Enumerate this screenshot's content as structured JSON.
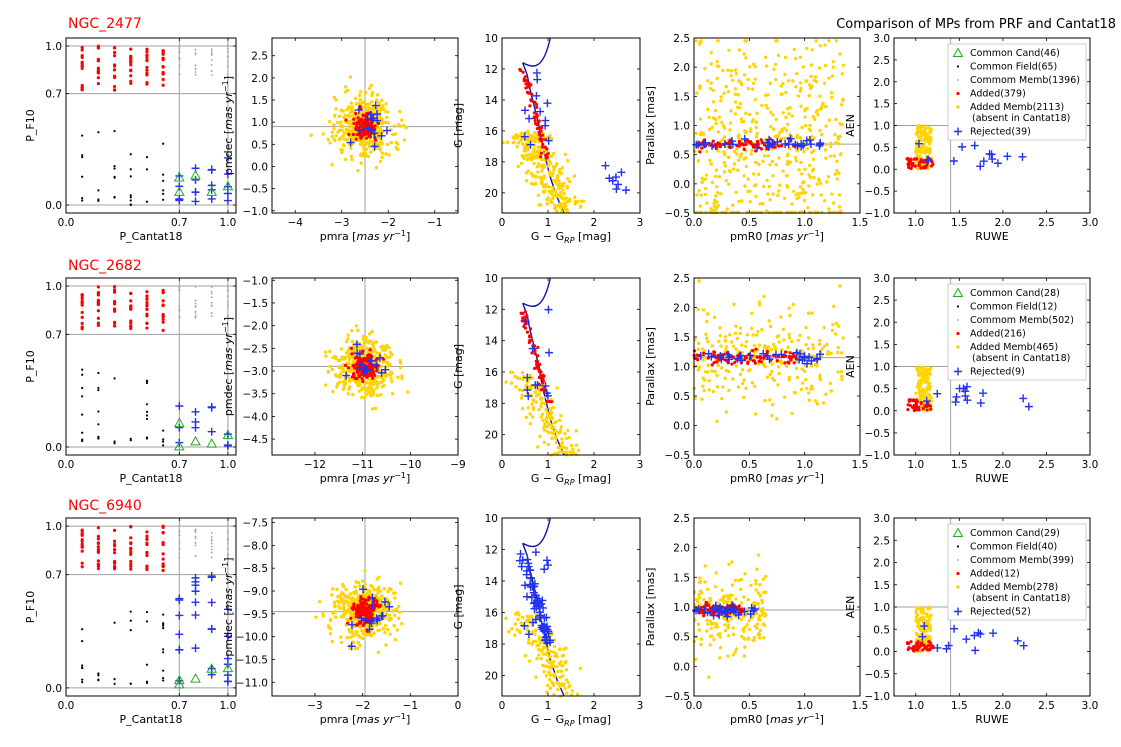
{
  "figure": {
    "suptitle": "Comparison of MPs from PRF and Cantat18"
  },
  "colors": {
    "added": "#ff0000",
    "common_field": "#000000",
    "common_memb": "#a0a0a0",
    "added_memb": "#ffd400",
    "rejected": "#2233ee",
    "common_cand": "#22aa22",
    "isochrone": "#1111aa",
    "refline": "#a0a0a0"
  },
  "chart_data": [
    {
      "cluster": "NGC_2477",
      "panels": [
        {
          "type": "scatter",
          "xlabel": "P_Cantat18",
          "ylabel": "P_F10",
          "xlim": [
            0,
            1.05
          ],
          "ylim": [
            -0.05,
            1.05
          ],
          "xticks": [
            {
              "v": 0,
              "l": "0.0"
            },
            {
              "v": 0.7,
              "l": "0.7"
            },
            {
              "v": 1,
              "l": "1.0"
            }
          ],
          "yticks": [
            {
              "v": 0,
              "l": "0.0"
            },
            {
              "v": 0.7,
              "l": "0.7"
            },
            {
              "v": 1,
              "l": "1.0"
            }
          ],
          "hlines": [
            0,
            0.7,
            1.0
          ],
          "vlines": [
            0.7,
            1.0
          ]
        },
        {
          "type": "scatter",
          "xlabel": "pmra",
          "xunit": "mas yr",
          "ylabel": "pmdec",
          "yunit": "mas yr",
          "xlim": [
            -4.5,
            -0.5
          ],
          "ylim": [
            -1.05,
            2.9
          ],
          "xticks": [
            {
              "v": -4,
              "l": "−4"
            },
            {
              "v": -3,
              "l": "−3"
            },
            {
              "v": -2,
              "l": "−2"
            },
            {
              "v": -1,
              "l": "−1"
            }
          ],
          "yticks": [
            {
              "v": -1,
              "l": "−1.0"
            },
            {
              "v": -0.5,
              "l": "−0.5"
            },
            {
              "v": 0,
              "l": "0.0"
            },
            {
              "v": 0.5,
              "l": "0.5"
            },
            {
              "v": 1,
              "l": "1.0"
            },
            {
              "v": 1.5,
              "l": "1.5"
            },
            {
              "v": 2,
              "l": "2.0"
            },
            {
              "v": 2.5,
              "l": "2.5"
            }
          ],
          "center": [
            -2.5,
            0.9
          ]
        },
        {
          "type": "cmd",
          "xlabel": "G − G",
          "xsub": "RP",
          "xlabel_tail": " [mag]",
          "ylabel": "G [mag]",
          "xlim": [
            0,
            3
          ],
          "ylim": [
            21.3,
            10
          ],
          "xticks": [
            {
              "v": 0,
              "l": "0"
            },
            {
              "v": 1,
              "l": "1"
            },
            {
              "v": 2,
              "l": "2"
            },
            {
              "v": 3,
              "l": "3"
            }
          ],
          "yticks": [
            {
              "v": 10,
              "l": "10"
            },
            {
              "v": 12,
              "l": "12"
            },
            {
              "v": 14,
              "l": "14"
            },
            {
              "v": 16,
              "l": "16"
            },
            {
              "v": 18,
              "l": "18"
            },
            {
              "v": 20,
              "l": "20"
            }
          ]
        },
        {
          "type": "scatter",
          "xlabel": "pmR0",
          "xunit": "mas yr",
          "ylabel": "Parallax [mas]",
          "xlim": [
            0,
            1.5
          ],
          "ylim": [
            -0.5,
            2.5
          ],
          "xticks": [
            {
              "v": 0,
              "l": "0.0"
            },
            {
              "v": 0.5,
              "l": "0.5"
            },
            {
              "v": 1,
              "l": "1.0"
            },
            {
              "v": 1.5,
              "l": "1.5"
            }
          ],
          "yticks": [
            {
              "v": -0.5,
              "l": "−0.5"
            },
            {
              "v": 0,
              "l": "0.0"
            },
            {
              "v": 0.5,
              "l": "0.5"
            },
            {
              "v": 1,
              "l": "1.0"
            },
            {
              "v": 1.5,
              "l": "1.5"
            },
            {
              "v": 2,
              "l": "2.0"
            },
            {
              "v": 2.5,
              "l": "2.5"
            }
          ],
          "hline": 0.68
        },
        {
          "type": "scatter",
          "xlabel": "RUWE",
          "ylabel": "AEN",
          "xlim": [
            0.75,
            3
          ],
          "ylim": [
            -1,
            3
          ],
          "xticks": [
            {
              "v": 1,
              "l": "1.0"
            },
            {
              "v": 1.5,
              "l": "1.5"
            },
            {
              "v": 2,
              "l": "2.0"
            },
            {
              "v": 2.5,
              "l": "2.5"
            },
            {
              "v": 3,
              "l": "3.0"
            }
          ],
          "yticks": [
            {
              "v": -1,
              "l": "−1.0"
            },
            {
              "v": -0.5,
              "l": "−0.5"
            },
            {
              "v": 0,
              "l": "0.0"
            },
            {
              "v": 0.5,
              "l": "0.5"
            },
            {
              "v": 1,
              "l": "1.0"
            },
            {
              "v": 1.5,
              "l": "1.5"
            },
            {
              "v": 2,
              "l": "2.0"
            },
            {
              "v": 2.5,
              "l": "2.5"
            },
            {
              "v": 3,
              "l": "3.0"
            }
          ],
          "vline": 1.4,
          "hline": 1.0
        }
      ],
      "legend": {
        "common_cand": "Common Cand(46)",
        "common_field": "Common Field(65)",
        "common_memb": "Commom Memb(1396)",
        "added": "Added(379)",
        "added_memb": "Added Memb(2113)",
        "added_memb_note": "(absent in Cantat18)",
        "rejected": "Rejected(39)"
      }
    },
    {
      "cluster": "NGC_2682",
      "panels": [
        {
          "type": "scatter",
          "xlabel": "P_Cantat18",
          "ylabel": "P_F10",
          "xlim": [
            0,
            1.05
          ],
          "ylim": [
            -0.05,
            1.05
          ],
          "xticks": [
            {
              "v": 0,
              "l": "0.0"
            },
            {
              "v": 0.7,
              "l": "0.7"
            },
            {
              "v": 1,
              "l": "1.0"
            }
          ],
          "yticks": [
            {
              "v": 0,
              "l": "0.0"
            },
            {
              "v": 0.7,
              "l": "0.7"
            },
            {
              "v": 1,
              "l": "1.0"
            }
          ],
          "hlines": [
            0,
            0.7,
            1.0
          ],
          "vlines": [
            0.7,
            1.0
          ]
        },
        {
          "type": "scatter",
          "xlabel": "pmra",
          "xunit": "mas yr",
          "ylabel": "pmdec",
          "yunit": "mas yr",
          "xlim": [
            -12.9,
            -9
          ],
          "ylim": [
            -4.85,
            -0.95
          ],
          "xticks": [
            {
              "v": -12,
              "l": "−12"
            },
            {
              "v": -11,
              "l": "−11"
            },
            {
              "v": -10,
              "l": "−10"
            },
            {
              "v": -9,
              "l": "−9"
            }
          ],
          "yticks": [
            {
              "v": -4.5,
              "l": "−4.5"
            },
            {
              "v": -4,
              "l": "−4.0"
            },
            {
              "v": -3.5,
              "l": "−3.5"
            },
            {
              "v": -3,
              "l": "−3.0"
            },
            {
              "v": -2.5,
              "l": "−2.5"
            },
            {
              "v": -2,
              "l": "−2.0"
            },
            {
              "v": -1.5,
              "l": "−1.5"
            },
            {
              "v": -1,
              "l": "−1.0"
            }
          ],
          "center": [
            -10.95,
            -2.9
          ]
        },
        {
          "type": "cmd",
          "xlabel": "G − G",
          "xsub": "RP",
          "xlabel_tail": " [mag]",
          "ylabel": "G [mag]",
          "xlim": [
            0,
            3
          ],
          "ylim": [
            21.3,
            10
          ],
          "xticks": [
            {
              "v": 0,
              "l": "0"
            },
            {
              "v": 1,
              "l": "1"
            },
            {
              "v": 2,
              "l": "2"
            },
            {
              "v": 3,
              "l": "3"
            }
          ],
          "yticks": [
            {
              "v": 10,
              "l": "10"
            },
            {
              "v": 12,
              "l": "12"
            },
            {
              "v": 14,
              "l": "14"
            },
            {
              "v": 16,
              "l": "16"
            },
            {
              "v": 18,
              "l": "18"
            },
            {
              "v": 20,
              "l": "20"
            }
          ]
        },
        {
          "type": "scatter",
          "xlabel": "pmR0",
          "xunit": "mas yr",
          "ylabel": "Parallax [mas]",
          "xlim": [
            0,
            1.5
          ],
          "ylim": [
            -0.5,
            2.5
          ],
          "xticks": [
            {
              "v": 0,
              "l": "0.0"
            },
            {
              "v": 0.5,
              "l": "0.5"
            },
            {
              "v": 1,
              "l": "1.0"
            },
            {
              "v": 1.5,
              "l": "1.5"
            }
          ],
          "yticks": [
            {
              "v": -0.5,
              "l": "−0.5"
            },
            {
              "v": 0,
              "l": "0.0"
            },
            {
              "v": 0.5,
              "l": "0.5"
            },
            {
              "v": 1,
              "l": "1.0"
            },
            {
              "v": 1.5,
              "l": "1.5"
            },
            {
              "v": 2,
              "l": "2.0"
            },
            {
              "v": 2.5,
              "l": "2.5"
            }
          ],
          "hline": 1.15
        },
        {
          "type": "scatter",
          "xlabel": "RUWE",
          "ylabel": "AEN",
          "xlim": [
            0.75,
            3
          ],
          "ylim": [
            -1,
            3
          ],
          "xticks": [
            {
              "v": 1,
              "l": "1.0"
            },
            {
              "v": 1.5,
              "l": "1.5"
            },
            {
              "v": 2,
              "l": "2.0"
            },
            {
              "v": 2.5,
              "l": "2.5"
            },
            {
              "v": 3,
              "l": "3.0"
            }
          ],
          "yticks": [
            {
              "v": -1,
              "l": "−1.0"
            },
            {
              "v": -0.5,
              "l": "−0.5"
            },
            {
              "v": 0,
              "l": "0.0"
            },
            {
              "v": 0.5,
              "l": "0.5"
            },
            {
              "v": 1,
              "l": "1.0"
            },
            {
              "v": 1.5,
              "l": "1.5"
            },
            {
              "v": 2,
              "l": "2.0"
            },
            {
              "v": 2.5,
              "l": "2.5"
            },
            {
              "v": 3,
              "l": "3.0"
            }
          ],
          "vline": 1.4,
          "hline": 1.0
        }
      ],
      "legend": {
        "common_cand": "Common Cand(28)",
        "common_field": "Common Field(12)",
        "common_memb": "Commom Memb(502)",
        "added": "Added(216)",
        "added_memb": "Added Memb(465)",
        "added_memb_note": "(absent in Cantat18)",
        "rejected": "Rejected(9)"
      }
    },
    {
      "cluster": "NGC_6940",
      "panels": [
        {
          "type": "scatter",
          "xlabel": "P_Cantat18",
          "ylabel": "P_F10",
          "xlim": [
            0,
            1.05
          ],
          "ylim": [
            -0.05,
            1.05
          ],
          "xticks": [
            {
              "v": 0,
              "l": "0.0"
            },
            {
              "v": 0.7,
              "l": "0.7"
            },
            {
              "v": 1,
              "l": "1.0"
            }
          ],
          "yticks": [
            {
              "v": 0,
              "l": "0.0"
            },
            {
              "v": 0.7,
              "l": "0.7"
            },
            {
              "v": 1,
              "l": "1.0"
            }
          ],
          "hlines": [
            0,
            0.7,
            1.0
          ],
          "vlines": [
            0.7,
            1.0
          ]
        },
        {
          "type": "scatter",
          "xlabel": "pmra",
          "xunit": "mas yr",
          "ylabel": "pmdec",
          "yunit": "mas yr",
          "xlim": [
            -3.9,
            0
          ],
          "ylim": [
            -11.3,
            -7.4
          ],
          "xticks": [
            {
              "v": -3,
              "l": "−3"
            },
            {
              "v": -2,
              "l": "−2"
            },
            {
              "v": -1,
              "l": "−1"
            },
            {
              "v": 0,
              "l": "0"
            }
          ],
          "yticks": [
            {
              "v": -11,
              "l": "−11.0"
            },
            {
              "v": -10.5,
              "l": "−10.5"
            },
            {
              "v": -10,
              "l": "−10.0"
            },
            {
              "v": -9.5,
              "l": "−9.5"
            },
            {
              "v": -9,
              "l": "−9.0"
            },
            {
              "v": -8.5,
              "l": "−8.5"
            },
            {
              "v": -8,
              "l": "−8.0"
            },
            {
              "v": -7.5,
              "l": "−7.5"
            }
          ],
          "center": [
            -1.95,
            -9.45
          ]
        },
        {
          "type": "cmd",
          "xlabel": "G − G",
          "xsub": "RP",
          "xlabel_tail": " [mag]",
          "ylabel": "G [mag]",
          "xlim": [
            0,
            3
          ],
          "ylim": [
            21.3,
            10
          ],
          "xticks": [
            {
              "v": 0,
              "l": "0"
            },
            {
              "v": 1,
              "l": "1"
            },
            {
              "v": 2,
              "l": "2"
            },
            {
              "v": 3,
              "l": "3"
            }
          ],
          "yticks": [
            {
              "v": 10,
              "l": "10"
            },
            {
              "v": 12,
              "l": "12"
            },
            {
              "v": 14,
              "l": "14"
            },
            {
              "v": 16,
              "l": "16"
            },
            {
              "v": 18,
              "l": "18"
            },
            {
              "v": 20,
              "l": "20"
            }
          ]
        },
        {
          "type": "scatter",
          "xlabel": "pmR0",
          "xunit": "mas yr",
          "ylabel": "Parallax [mas]",
          "xlim": [
            0,
            1.5
          ],
          "ylim": [
            -0.5,
            2.5
          ],
          "xticks": [
            {
              "v": 0,
              "l": "0.0"
            },
            {
              "v": 0.5,
              "l": "0.5"
            },
            {
              "v": 1,
              "l": "1.0"
            },
            {
              "v": 1.5,
              "l": "1.5"
            }
          ],
          "yticks": [
            {
              "v": -0.5,
              "l": "−0.5"
            },
            {
              "v": 0,
              "l": "0.0"
            },
            {
              "v": 0.5,
              "l": "0.5"
            },
            {
              "v": 1,
              "l": "1.0"
            },
            {
              "v": 1.5,
              "l": "1.5"
            },
            {
              "v": 2,
              "l": "2.0"
            },
            {
              "v": 2.5,
              "l": "2.5"
            }
          ],
          "hline": 0.95
        },
        {
          "type": "scatter",
          "xlabel": "RUWE",
          "ylabel": "AEN",
          "xlim": [
            0.75,
            3
          ],
          "ylim": [
            -1,
            3
          ],
          "xticks": [
            {
              "v": 1,
              "l": "1.0"
            },
            {
              "v": 1.5,
              "l": "1.5"
            },
            {
              "v": 2,
              "l": "2.0"
            },
            {
              "v": 2.5,
              "l": "2.5"
            },
            {
              "v": 3,
              "l": "3.0"
            }
          ],
          "yticks": [
            {
              "v": -1,
              "l": "−1.0"
            },
            {
              "v": -0.5,
              "l": "−0.5"
            },
            {
              "v": 0,
              "l": "0.0"
            },
            {
              "v": 0.5,
              "l": "0.5"
            },
            {
              "v": 1,
              "l": "1.0"
            },
            {
              "v": 1.5,
              "l": "1.5"
            },
            {
              "v": 2,
              "l": "2.0"
            },
            {
              "v": 2.5,
              "l": "2.5"
            },
            {
              "v": 3,
              "l": "3.0"
            }
          ],
          "vline": 1.4,
          "hline": 1.0
        }
      ],
      "legend": {
        "common_cand": "Common Cand(29)",
        "common_field": "Common Field(40)",
        "common_memb": "Commom Memb(399)",
        "added": "Added(12)",
        "added_memb": "Added Memb(278)",
        "added_memb_note": "(absent in Cantat18)",
        "rejected": "Rejected(52)"
      }
    }
  ]
}
